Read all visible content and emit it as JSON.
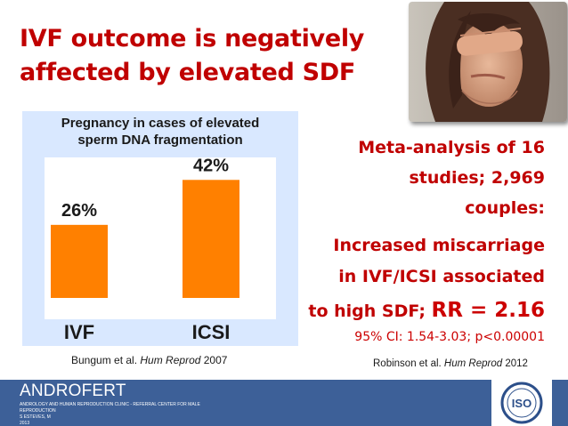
{
  "slide": {
    "title_line1": "IVF outcome is negatively",
    "title_line2": "affected by elevated SDF",
    "accent_color": "#c00000"
  },
  "chart_data": {
    "type": "bar",
    "title_line1": "Pregnancy in cases of elevated",
    "title_line2": "sperm DNA fragmentation",
    "categories": [
      "IVF",
      "ICSI"
    ],
    "values": [
      26,
      42
    ],
    "value_labels": [
      "26%",
      "42%"
    ],
    "unit": "%",
    "ylim": [
      0,
      50
    ],
    "bar_color": "#ff8000",
    "panel_color": "#d9e8ff",
    "grid": false,
    "legend": "none"
  },
  "citations": {
    "left_authors": "Bungum et al. ",
    "left_journal": "Hum Reprod",
    "left_year": " 2007",
    "right_authors": "Robinson et al. ",
    "right_journal": "Hum Reprod",
    "right_year": " 2012"
  },
  "meta_analysis": {
    "line1": "Meta-analysis of 16",
    "line2": "studies; 2,969",
    "line3": "couples:",
    "line4": "Increased miscarriage",
    "line5": "in IVF/ICSI associated",
    "line6_prefix": "to high SDF; ",
    "rr": "RR = 2.16",
    "ci": "95% CI: 1.54-3.03; p<0.00001"
  },
  "footer": {
    "brand": "ANDROFERT",
    "subtitle_line1": "ANDROLOGY AND HUMAN REPRODUCTION CLINIC - REFERRAL CENTER FOR MALE REPRODUCTION",
    "subtitle_line2": "S ESTEVES, M",
    "subtitle_line3": "2013",
    "logo_text": "ISO",
    "color": "#3d6098"
  }
}
